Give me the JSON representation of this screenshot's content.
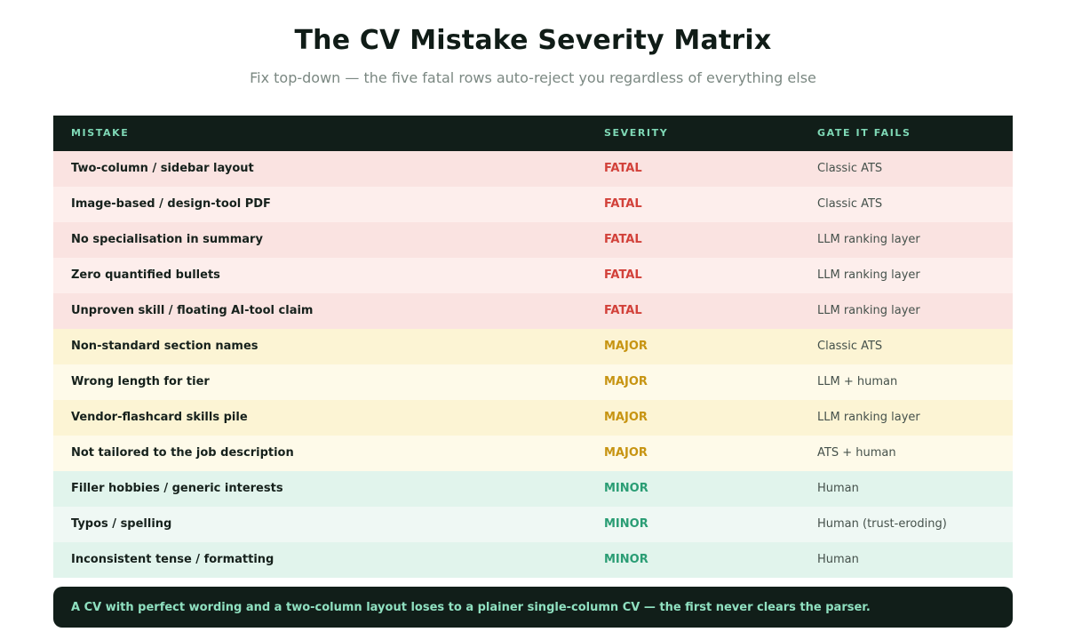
{
  "header": {
    "title": "The CV Mistake Severity Matrix",
    "subtitle": "Fix top-down — the five fatal rows auto-reject you regardless of everything else"
  },
  "table": {
    "columns": [
      "MISTAKE",
      "SEVERITY",
      "GATE IT FAILS"
    ],
    "rows": [
      {
        "mistake": "Two-column / sidebar layout",
        "severity": "FATAL",
        "gate": "Classic ATS"
      },
      {
        "mistake": "Image-based / design-tool PDF",
        "severity": "FATAL",
        "gate": "Classic ATS"
      },
      {
        "mistake": "No specialisation in summary",
        "severity": "FATAL",
        "gate": "LLM ranking layer"
      },
      {
        "mistake": "Zero quantified bullets",
        "severity": "FATAL",
        "gate": "LLM ranking layer"
      },
      {
        "mistake": "Unproven skill / floating AI-tool claim",
        "severity": "FATAL",
        "gate": "LLM ranking layer"
      },
      {
        "mistake": "Non-standard section names",
        "severity": "MAJOR",
        "gate": "Classic ATS"
      },
      {
        "mistake": "Wrong length for tier",
        "severity": "MAJOR",
        "gate": "LLM + human"
      },
      {
        "mistake": "Vendor-flashcard skills pile",
        "severity": "MAJOR",
        "gate": "LLM ranking layer"
      },
      {
        "mistake": "Not tailored to the job description",
        "severity": "MAJOR",
        "gate": "ATS + human"
      },
      {
        "mistake": "Filler hobbies / generic interests",
        "severity": "MINOR",
        "gate": "Human"
      },
      {
        "mistake": "Typos / spelling",
        "severity": "MINOR",
        "gate": "Human (trust-eroding)"
      },
      {
        "mistake": "Inconsistent tense / formatting",
        "severity": "MINOR",
        "gate": "Human"
      }
    ]
  },
  "severity_colors": {
    "FATAL": "#d2413a",
    "MAJOR": "#c79412",
    "MINOR": "#2a9d74"
  },
  "callout": {
    "text": "A CV with perfect wording and a two-column layout loses to a plainer single-column CV — the first never clears the parser."
  }
}
